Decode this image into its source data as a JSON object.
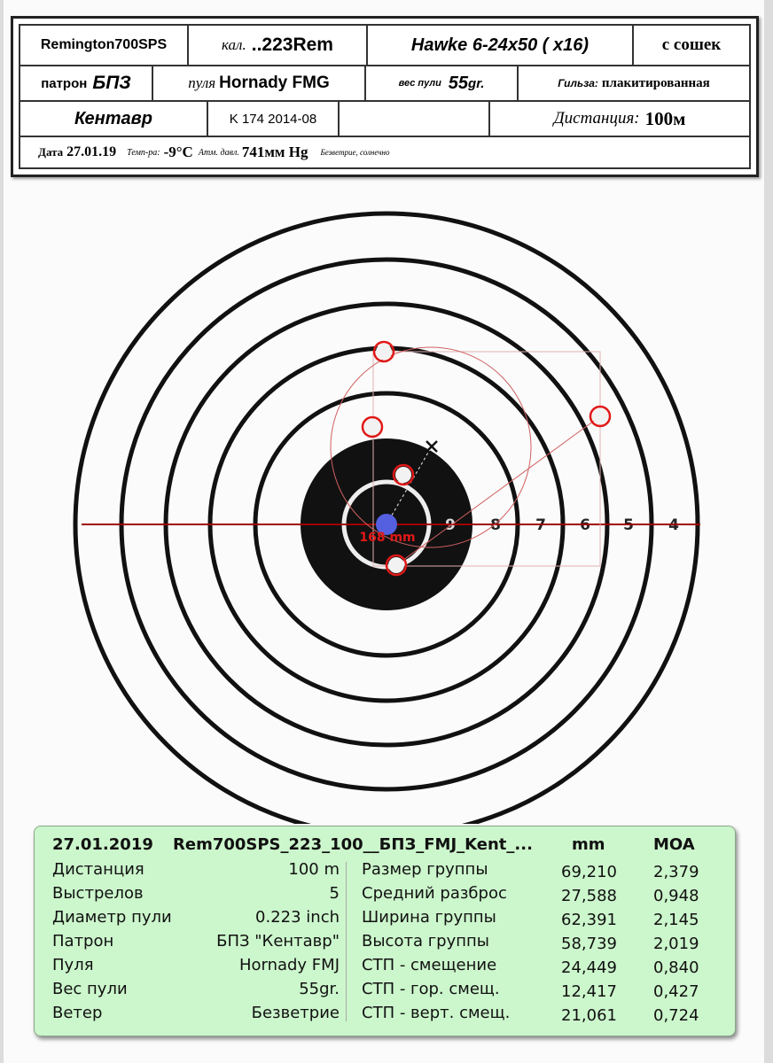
{
  "header": {
    "rifle": "Remington700SPS",
    "caliber_label": "кал.",
    "caliber": "..223Rem",
    "scope": "Hawke 6-24x50 ( x16)",
    "support": "с сошек",
    "cartridge_label": "патрон",
    "cartridge": "БПЗ",
    "bullet_label": "пуля",
    "bullet": "Hornady FMG",
    "bullet_weight_label": "вес пули",
    "bullet_weight": "55",
    "bullet_weight_unit": "gr.",
    "case_label": "Гильза:",
    "case": "плакитированная",
    "brand": "Кентавр",
    "lot": "K 174 2014-08",
    "distance_label": "Дистанция:",
    "distance": "100м",
    "date_label": "Дата",
    "date": "27.01.19",
    "temp_label": "Темп-ра:",
    "temp": "-9°C",
    "pressure_label": "Атм. давл.",
    "pressure": "741мм Hg",
    "weather": "Безветрие, солнечно"
  },
  "target": {
    "ring_labels": [
      "9",
      "8",
      "7",
      "6",
      "5",
      "4"
    ],
    "offset_label": "168 mm",
    "colors": {
      "hole_marker": "#e01818",
      "poa": "#5560e0",
      "line": "#a00000",
      "group": "#d06060"
    }
  },
  "stats": {
    "date": "27.01.2019",
    "file": "Rem700SPS_223_100__БПЗ_FMJ_Kent_...",
    "col_mm": "mm",
    "col_moa": "MOA",
    "left": [
      {
        "label": "Дистанция",
        "value": "100  m"
      },
      {
        "label": "Выстрелов",
        "value": "5"
      },
      {
        "label": "Диаметр пули",
        "value": "0.223  inch"
      },
      {
        "label": "Патрон",
        "value": "БПЗ \"Кентавр\""
      },
      {
        "label": "Пуля",
        "value": "Hornady FMJ"
      },
      {
        "label": "Вес пули",
        "value": "55gr."
      },
      {
        "label": "Ветер",
        "value": "Безветрие"
      }
    ],
    "right": [
      {
        "label": "Размер группы",
        "mm": "69,210",
        "moa": "2,379"
      },
      {
        "label": "Средний разброс",
        "mm": "27,588",
        "moa": "0,948"
      },
      {
        "label": "Ширина группы",
        "mm": "62,391",
        "moa": "2,145"
      },
      {
        "label": "Высота группы",
        "mm": "58,739",
        "moa": "2,019"
      },
      {
        "label": "СТП - смещение",
        "mm": "24,449",
        "moa": "0,840"
      },
      {
        "label": "СТП - гор. смещ.",
        "mm": "12,417",
        "moa": "0,427"
      },
      {
        "label": "СТП - верт. смещ.",
        "mm": "21,061",
        "moa": "0,724"
      }
    ]
  }
}
